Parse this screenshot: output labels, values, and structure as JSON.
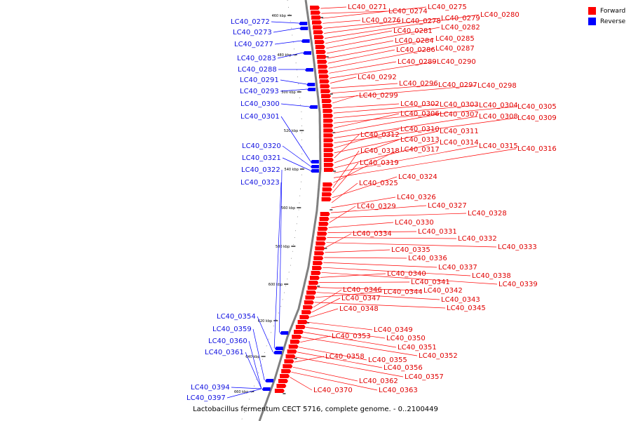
{
  "caption": "Lactobacillus fermentum CECT 5716, complete genome. - 0..2100449",
  "legend": [
    {
      "label": "Forward",
      "color": "#ff0000"
    },
    {
      "label": "Reverse",
      "color": "#0000ff"
    }
  ],
  "colors": {
    "forward": "#ff0000",
    "reverse": "#0000ff",
    "backbone": "#808080"
  },
  "ticks": [
    "460 kbp",
    "480 kbp",
    "500 kbp",
    "520 kbp",
    "540 kbp",
    "560 kbp",
    "580 kbp",
    "600 kbp",
    "620 kbp",
    "640 kbp",
    "660 kbp"
  ],
  "forward_labels": [
    "LC40_0271",
    "LC40_0274",
    "LC40_0275",
    "LC40_0276",
    "LC40_0278",
    "LC40_0279",
    "LC40_0280",
    "LC40_0281",
    "LC40_0282",
    "LC40_0284",
    "LC40_0285",
    "LC40_0286",
    "LC40_0287",
    "LC40_0289",
    "LC40_0290",
    "LC40_0292",
    "LC40_0296",
    "LC40_0297",
    "LC40_0298",
    "LC40_0299",
    "LC40_0302",
    "LC40_0303",
    "LC40_0304",
    "LC40_0305",
    "LC40_0306",
    "LC40_0307",
    "LC40_0308",
    "LC40_0309",
    "LC40_0310",
    "LC40_0311",
    "LC40_0312",
    "LC40_0313",
    "LC40_0314",
    "LC40_0315",
    "LC40_0316",
    "LC40_0317",
    "LC40_0318",
    "LC40_0319",
    "LC40_0324",
    "LC40_0325",
    "LC40_0326",
    "LC40_0327",
    "LC40_0328",
    "LC40_0329",
    "LC40_0330",
    "LC40_0331",
    "LC40_0332",
    "LC40_0333",
    "LC40_0334",
    "LC40_0335",
    "LC40_0336",
    "LC40_0337",
    "LC40_0338",
    "LC40_0339",
    "LC40_0340",
    "LC40_0341",
    "LC40_0342",
    "LC40_0343",
    "LC40_0344",
    "LC40_0345",
    "LC40_0346",
    "LC40_0347",
    "LC40_0348",
    "LC40_0349",
    "LC40_0350",
    "LC40_0351",
    "LC40_0352",
    "LC40_0353",
    "LC40_0355",
    "LC40_0356",
    "LC40_0357",
    "LC40_0358",
    "LC40_0362",
    "LC40_0363",
    "LC40_0370"
  ],
  "reverse_labels": [
    "LC40_0272",
    "LC40_0273",
    "LC40_0277",
    "LC40_0283",
    "LC40_0288",
    "LC40_0291",
    "LC40_0293",
    "LC40_0300",
    "LC40_0301",
    "LC40_0320",
    "LC40_0321",
    "LC40_0322",
    "LC40_0323",
    "LC40_0354",
    "LC40_0359",
    "LC40_0360",
    "LC40_0361",
    "LC40_0394",
    "LC40_0397"
  ]
}
